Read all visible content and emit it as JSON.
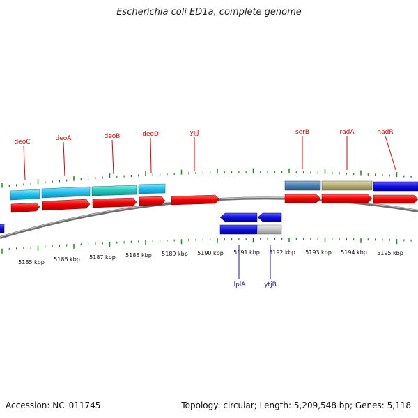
{
  "title": "Escherichia coli ED1a, complete genome",
  "footer": {
    "accession": "Accession: NC_011745",
    "summary": "Topology: circular; Length: 5,209,548 bp; Genes: 5,118"
  },
  "axis": {
    "ticks": [
      "5185 kbp",
      "5186 kbp",
      "5187 kbp",
      "5188 kbp",
      "5189 kbp",
      "5190 kbp",
      "5191 kbp",
      "5192 kbp",
      "5193 kbp",
      "5194 kbp",
      "5195 kbp"
    ]
  },
  "genes_top": [
    {
      "label": "deoC"
    },
    {
      "label": "deoA"
    },
    {
      "label": "deoB"
    },
    {
      "label": "deoD"
    },
    {
      "label": "yjjJ"
    },
    {
      "label": "serB"
    },
    {
      "label": "radA"
    },
    {
      "label": "nadR"
    }
  ],
  "genes_bottom": [
    {
      "label": "lplA"
    },
    {
      "label": "ytjB"
    }
  ],
  "colors": {
    "forward_cds": "#ff0000",
    "reverse_cds": "#1010e0",
    "deo_genes": "#1fc0ee",
    "deoB": "#20c8c0",
    "serB": "#4a7fb0",
    "radA": "#b6ae78",
    "nadR": "#1010e0",
    "ytjB": "#c0c0c0",
    "backbone": "#888888",
    "ticks": "#1a8a1a"
  }
}
